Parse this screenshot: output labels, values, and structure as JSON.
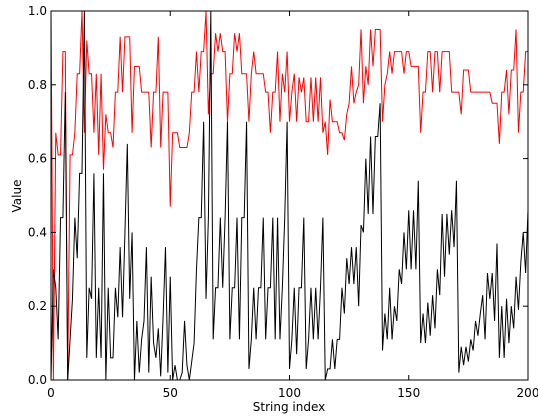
{
  "chart_data": {
    "type": "line",
    "xlabel": "String index",
    "ylabel": "Value",
    "xlim": [
      0,
      200
    ],
    "ylim": [
      0,
      1.0
    ],
    "xticks": [
      0,
      50,
      100,
      150,
      200
    ],
    "yticks": [
      0.0,
      0.2,
      0.4,
      0.6,
      0.8,
      1.0
    ],
    "xtick_labels": [
      "0",
      "50",
      "100",
      "150",
      "200"
    ],
    "ytick_labels": [
      "0.0",
      "0.2",
      "0.4",
      "0.6",
      "0.8",
      "1.0"
    ],
    "grid": false,
    "x": [
      0,
      1,
      2,
      3,
      4,
      5,
      6,
      7,
      8,
      9,
      10,
      11,
      12,
      13,
      14,
      15,
      16,
      17,
      18,
      19,
      20,
      21,
      22,
      23,
      24,
      25,
      26,
      27,
      28,
      29,
      30,
      31,
      32,
      33,
      34,
      35,
      36,
      37,
      38,
      39,
      40,
      41,
      42,
      43,
      44,
      45,
      46,
      47,
      48,
      49,
      50,
      51,
      52,
      53,
      54,
      55,
      56,
      57,
      58,
      59,
      60,
      61,
      62,
      63,
      64,
      65,
      66,
      67,
      68,
      69,
      70,
      71,
      72,
      73,
      74,
      75,
      76,
      77,
      78,
      79,
      80,
      81,
      82,
      83,
      84,
      85,
      86,
      87,
      88,
      89,
      90,
      91,
      92,
      93,
      94,
      95,
      96,
      97,
      98,
      99,
      100,
      101,
      102,
      103,
      104,
      105,
      106,
      107,
      108,
      109,
      110,
      111,
      112,
      113,
      114,
      115,
      116,
      117,
      118,
      119,
      120,
      121,
      122,
      123,
      124,
      125,
      126,
      127,
      128,
      129,
      130,
      131,
      132,
      133,
      134,
      135,
      136,
      137,
      138,
      139,
      140,
      141,
      142,
      143,
      144,
      145,
      146,
      147,
      148,
      149,
      150,
      151,
      152,
      153,
      154,
      155,
      156,
      157,
      158,
      159,
      160,
      161,
      162,
      163,
      164,
      165,
      166,
      167,
      168,
      169,
      170,
      171,
      172,
      173,
      174,
      175,
      176,
      177,
      178,
      179,
      180,
      181,
      182,
      183,
      184,
      185,
      186,
      187,
      188,
      189,
      190,
      191,
      192,
      193,
      194,
      195,
      196,
      197,
      198,
      199,
      200
    ],
    "series": [
      {
        "color": "#ff0000",
        "values": [
          1.0,
          0.0,
          0.67,
          0.61,
          0.61,
          0.89,
          0.89,
          0.0,
          0.61,
          0.61,
          0.67,
          0.83,
          0.83,
          1.0,
          0.67,
          0.92,
          0.83,
          0.83,
          0.67,
          0.83,
          0.61,
          0.83,
          0.57,
          0.72,
          0.67,
          0.67,
          0.63,
          0.78,
          0.78,
          0.93,
          0.78,
          0.93,
          0.93,
          0.93,
          0.67,
          0.85,
          0.85,
          0.85,
          0.78,
          0.78,
          0.78,
          0.78,
          0.63,
          0.78,
          0.78,
          0.93,
          0.63,
          0.78,
          0.78,
          0.78,
          0.47,
          0.67,
          0.67,
          0.67,
          0.63,
          0.63,
          0.63,
          0.63,
          0.67,
          0.78,
          0.78,
          0.89,
          0.78,
          0.89,
          0.89,
          1.0,
          0.72,
          0.83,
          0.83,
          0.94,
          0.89,
          0.94,
          0.89,
          0.89,
          0.7,
          0.83,
          0.83,
          0.94,
          0.89,
          0.94,
          0.83,
          0.83,
          0.83,
          0.7,
          0.83,
          0.89,
          0.83,
          0.83,
          0.83,
          0.83,
          0.78,
          0.78,
          0.67,
          0.78,
          0.78,
          0.89,
          0.7,
          0.83,
          0.78,
          0.89,
          0.7,
          0.78,
          0.83,
          0.7,
          0.82,
          0.78,
          0.82,
          0.7,
          0.7,
          0.82,
          0.7,
          0.82,
          0.7,
          0.82,
          0.67,
          0.7,
          0.61,
          0.76,
          0.7,
          0.7,
          0.7,
          0.67,
          0.67,
          0.65,
          0.72,
          0.75,
          0.85,
          0.75,
          0.78,
          0.8,
          0.95,
          0.75,
          0.85,
          0.8,
          0.95,
          0.85,
          0.95,
          0.95,
          0.95,
          0.7,
          0.8,
          0.83,
          0.89,
          0.83,
          0.89,
          0.89,
          0.89,
          0.89,
          0.83,
          0.89,
          0.89,
          0.85,
          0.85,
          0.85,
          0.85,
          0.67,
          0.78,
          0.78,
          0.89,
          0.89,
          0.78,
          0.89,
          0.89,
          0.78,
          0.89,
          0.89,
          0.89,
          0.89,
          0.78,
          0.78,
          0.78,
          0.78,
          0.72,
          0.84,
          0.84,
          0.84,
          0.78,
          0.78,
          0.78,
          0.78,
          0.78,
          0.78,
          0.78,
          0.78,
          0.78,
          0.75,
          0.75,
          0.75,
          0.64,
          0.78,
          0.78,
          0.84,
          0.72,
          0.84,
          0.84,
          0.95,
          0.67,
          0.78,
          0.78,
          0.89,
          0.89
        ]
      },
      {
        "color": "#000000",
        "values": [
          0.0,
          0.3,
          0.25,
          0.11,
          0.44,
          0.44,
          0.78,
          0.0,
          0.11,
          0.22,
          0.44,
          0.33,
          0.56,
          0.56,
          1.0,
          0.06,
          0.25,
          0.22,
          0.56,
          0.06,
          0.25,
          0.06,
          0.56,
          0.0,
          0.25,
          0.06,
          0.06,
          0.25,
          0.17,
          0.36,
          0.17,
          0.4,
          0.64,
          0.22,
          0.4,
          0.0,
          0.16,
          0.02,
          0.11,
          0.16,
          0.36,
          0.02,
          0.28,
          0.1,
          0.06,
          0.14,
          0.01,
          0.17,
          0.36,
          0.02,
          0.28,
          0.0,
          0.04,
          0.0,
          0.0,
          0.02,
          0.16,
          0.04,
          0.0,
          0.05,
          0.1,
          0.3,
          0.44,
          0.44,
          0.7,
          0.22,
          0.44,
          1.0,
          0.11,
          0.25,
          0.25,
          0.44,
          0.25,
          0.44,
          0.7,
          0.11,
          0.25,
          0.25,
          0.44,
          0.11,
          0.44,
          0.44,
          0.7,
          0.03,
          0.11,
          0.25,
          0.11,
          0.25,
          0.25,
          0.44,
          0.11,
          0.25,
          0.25,
          0.44,
          0.11,
          0.44,
          0.11,
          0.25,
          0.44,
          0.7,
          0.03,
          0.11,
          0.25,
          0.07,
          0.25,
          0.25,
          0.44,
          0.03,
          0.11,
          0.25,
          0.11,
          0.25,
          0.11,
          0.25,
          0.44,
          0.0,
          0.03,
          0.03,
          0.11,
          0.03,
          0.11,
          0.11,
          0.25,
          0.18,
          0.33,
          0.26,
          0.36,
          0.26,
          0.36,
          0.2,
          0.42,
          0.4,
          0.6,
          0.45,
          0.66,
          0.45,
          0.66,
          0.66,
          0.75,
          0.08,
          0.18,
          0.11,
          0.25,
          0.11,
          0.2,
          0.16,
          0.3,
          0.26,
          0.4,
          0.3,
          0.46,
          0.3,
          0.46,
          0.3,
          0.54,
          0.1,
          0.18,
          0.1,
          0.21,
          0.12,
          0.23,
          0.14,
          0.3,
          0.23,
          0.45,
          0.28,
          0.45,
          0.34,
          0.46,
          0.36,
          0.54,
          0.02,
          0.09,
          0.04,
          0.09,
          0.05,
          0.11,
          0.08,
          0.16,
          0.12,
          0.18,
          0.23,
          0.11,
          0.29,
          0.22,
          0.29,
          0.16,
          0.37,
          0.06,
          0.2,
          0.06,
          0.22,
          0.1,
          0.2,
          0.14,
          0.28,
          0.19,
          0.32,
          0.4,
          0.29,
          0.46
        ]
      }
    ]
  }
}
